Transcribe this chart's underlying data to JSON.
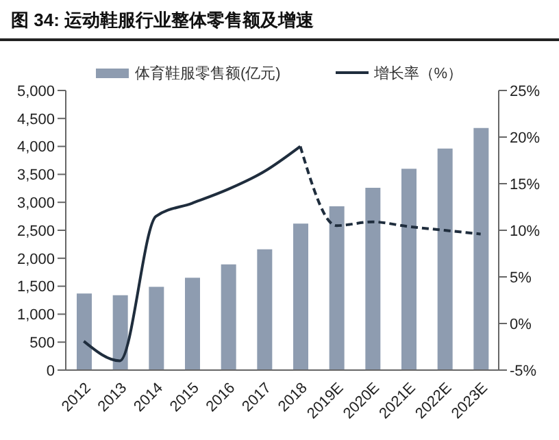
{
  "chart_data": {
    "type": "bar",
    "title": "图 34: 运动鞋服行业整体零售额及增速",
    "categories": [
      "2012",
      "2013",
      "2014",
      "2015",
      "2016",
      "2017",
      "2018",
      "2019E",
      "2020E",
      "2021E",
      "2022E",
      "2023E"
    ],
    "series": [
      {
        "name": "体育鞋服零售额(亿元)",
        "color": "#8e9cb0",
        "values": [
          1370,
          1340,
          1490,
          1650,
          1890,
          2160,
          2620,
          2930,
          3260,
          3600,
          3960,
          4330
        ]
      },
      {
        "name": "增长率（%）",
        "type": "line",
        "axis": "y2",
        "color": "#1f2d3d",
        "line_style": "solid",
        "values": [
          -1.9,
          -4.0,
          11.5,
          12.9,
          14.4,
          16.3,
          19.0,
          null,
          null,
          null,
          null,
          null
        ]
      },
      {
        "type": "line",
        "axis": "y2",
        "color": "#1f2d3d",
        "line_style": "dashed",
        "values": [
          null,
          null,
          null,
          null,
          null,
          null,
          19.0,
          10.5,
          10.9,
          10.4,
          10.0,
          9.6
        ]
      }
    ],
    "ylim": [
      0,
      5000
    ],
    "yticks": [
      0,
      500,
      {
        "value": 1000,
        "label": "1,000"
      },
      {
        "value": 1500,
        "label": "1,500"
      },
      {
        "value": 2000,
        "label": "2,000"
      },
      {
        "value": 2500,
        "label": "2,500"
      },
      {
        "value": 3000,
        "label": "3,000"
      },
      {
        "value": 3500,
        "label": "3,500"
      },
      {
        "value": 4000,
        "label": "4,000"
      },
      {
        "value": 4500,
        "label": "4,500"
      },
      {
        "value": 5000,
        "label": "5,000"
      }
    ],
    "y2lim": [
      -5,
      25
    ],
    "y2ticks": [
      {
        "value": -5,
        "label": "-5%"
      },
      {
        "value": 0,
        "label": "0%"
      },
      {
        "value": 5,
        "label": "5%"
      },
      {
        "value": 10,
        "label": "10%"
      },
      {
        "value": 15,
        "label": "15%"
      },
      {
        "value": 20,
        "label": "20%"
      },
      {
        "value": 25,
        "label": "25%"
      }
    ],
    "legend": "top",
    "grid": false,
    "marker": "none"
  }
}
